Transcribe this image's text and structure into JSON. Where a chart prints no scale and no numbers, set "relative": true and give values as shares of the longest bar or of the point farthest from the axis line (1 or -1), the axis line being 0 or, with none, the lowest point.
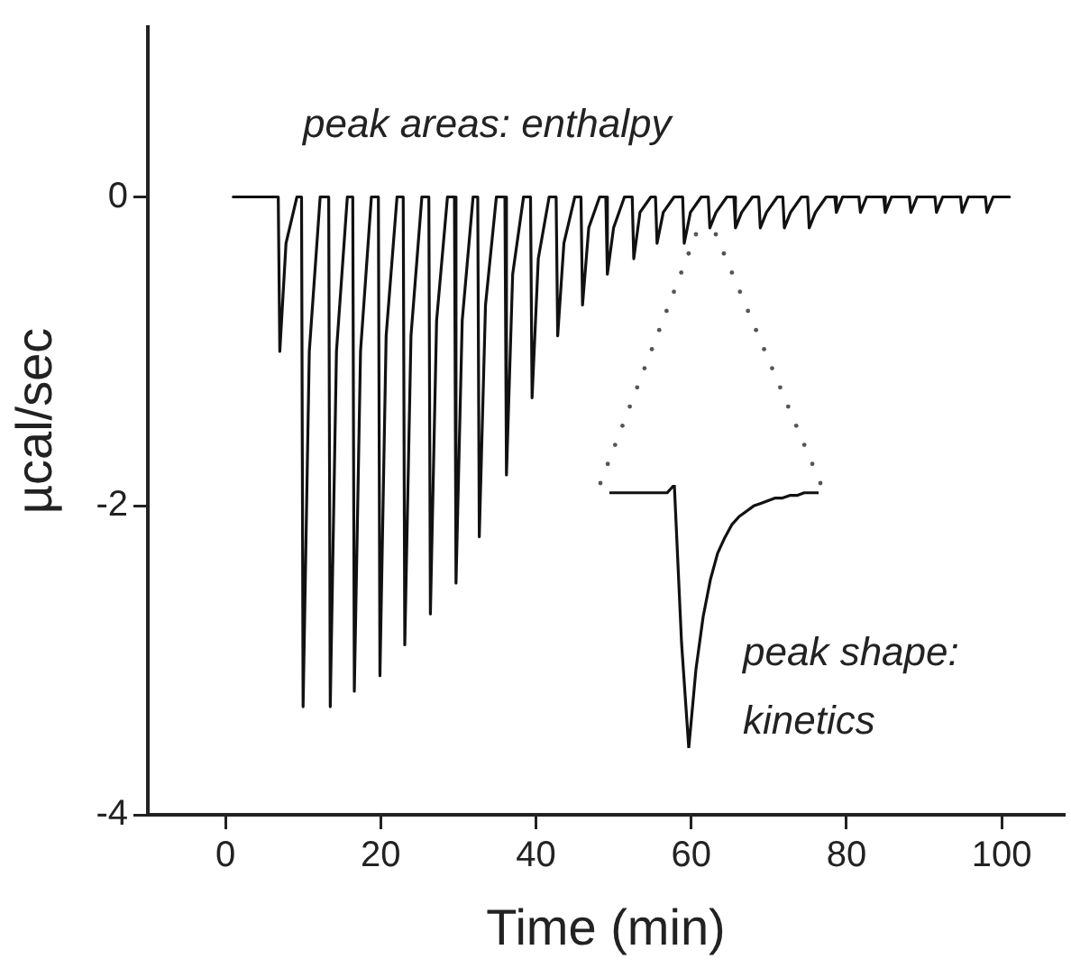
{
  "chart_data": [
    {
      "type": "line",
      "xlabel": "Time (min)",
      "ylabel": "µcal/sec",
      "annotations": [
        "peak areas: enthalpy"
      ],
      "xlim": [
        -10,
        108
      ],
      "xticks": [
        0,
        20,
        40,
        60,
        80,
        100
      ],
      "ylim": [
        -4,
        1.1
      ],
      "yticks": [
        0,
        -2,
        -4
      ],
      "grid": false,
      "legend": false,
      "marker": "none",
      "line_style": "solid",
      "series": [
        {
          "color": "#111111",
          "x": [
            1,
            6.8,
            7.0,
            7.8,
            9.2,
            9.8,
            10,
            10.8,
            12.2,
            13.3,
            13.5,
            14.3,
            15.7,
            16.4,
            16.6,
            17.4,
            18.8,
            19.7,
            19.9,
            20.7,
            22.1,
            22.9,
            23.1,
            23.9,
            25.3,
            26.2,
            26.4,
            27.2,
            28.6,
            29.5,
            29.7,
            30.5,
            31.9,
            32.5,
            32.7,
            33.5,
            34.9,
            36.0,
            36.2,
            37.0,
            38.4,
            39.3,
            39.5,
            40.3,
            41.7,
            42.6,
            42.8,
            43.6,
            45.0,
            45.8,
            46.0,
            46.8,
            48.2,
            49.0,
            49.2,
            50.0,
            51.4,
            52.4,
            52.6,
            53.4,
            54.8,
            55.4,
            55.6,
            56.4,
            57.8,
            58.9,
            59.1,
            59.9,
            61.3,
            62.2,
            62.4,
            63.2,
            64.6,
            65.5,
            65.7,
            66.5,
            67.9,
            68.7,
            68.9,
            69.7,
            71.1,
            71.8,
            72.0,
            72.8,
            74.2,
            75.0,
            75.2,
            76.0,
            77.4,
            78.5,
            78.7,
            79.5,
            80.9,
            81.6,
            81.8,
            82.6,
            84.0,
            84.8,
            85.0,
            85.8,
            87.2,
            88.1,
            88.3,
            89.1,
            90.5,
            91.4,
            91.6,
            92.4,
            93.8,
            94.7,
            94.9,
            95.7,
            97.1,
            97.9,
            98.1,
            98.9,
            100.3,
            101
          ],
          "values": [
            0,
            0,
            -1.0,
            -0.3,
            0,
            0,
            -3.3,
            -1.0,
            0,
            0,
            -3.3,
            -1.0,
            0,
            0,
            -3.2,
            -1.0,
            0,
            0,
            -3.1,
            -0.9,
            0,
            0,
            -2.9,
            -0.9,
            0,
            0,
            -2.7,
            -0.8,
            0,
            0,
            -2.5,
            -0.8,
            0,
            0,
            -2.2,
            -0.7,
            0,
            0,
            -1.8,
            -0.5,
            0,
            0,
            -1.3,
            -0.4,
            0,
            0,
            -0.9,
            -0.3,
            0,
            0,
            -0.7,
            -0.2,
            0,
            0,
            -0.5,
            -0.2,
            0,
            0,
            -0.4,
            -0.1,
            0,
            0,
            -0.3,
            -0.1,
            0,
            0,
            -0.3,
            -0.1,
            0,
            0,
            -0.2,
            -0.1,
            0,
            0,
            -0.2,
            -0.1,
            0,
            0,
            -0.2,
            -0.1,
            0,
            0,
            -0.2,
            -0.1,
            0,
            0,
            -0.2,
            -0.1,
            0,
            0,
            -0.1,
            0,
            0,
            0,
            -0.1,
            0,
            0,
            0,
            -0.1,
            0,
            0,
            0,
            -0.1,
            0,
            0,
            0,
            -0.1,
            0,
            0,
            0,
            -0.1,
            0,
            0,
            0,
            -0.1,
            0,
            0,
            0
          ]
        }
      ]
    },
    {
      "type": "line",
      "relative": true,
      "annotations": [
        "peak shape: kinetics"
      ],
      "legend": false,
      "marker": "none",
      "line_style": "solid",
      "categories": [
        null,
        null,
        null,
        null,
        null,
        null,
        null,
        null,
        null,
        null,
        null,
        null,
        null,
        null,
        null,
        null,
        null,
        null,
        null,
        null,
        null,
        null,
        null,
        null,
        null,
        null,
        null,
        null,
        null,
        null
      ],
      "series": [
        {
          "color": "#111111",
          "values": [
            0.97,
            0.97,
            0.97,
            0.97,
            0.97,
            0.97,
            0.97,
            0.97,
            0.97,
            1.0,
            0.4,
            0,
            0.3,
            0.5,
            0.64,
            0.74,
            0.8,
            0.85,
            0.88,
            0.9,
            0.92,
            0.93,
            0.94,
            0.95,
            0.95,
            0.96,
            0.96,
            0.97,
            0.97,
            0.97
          ]
        }
      ]
    }
  ]
}
